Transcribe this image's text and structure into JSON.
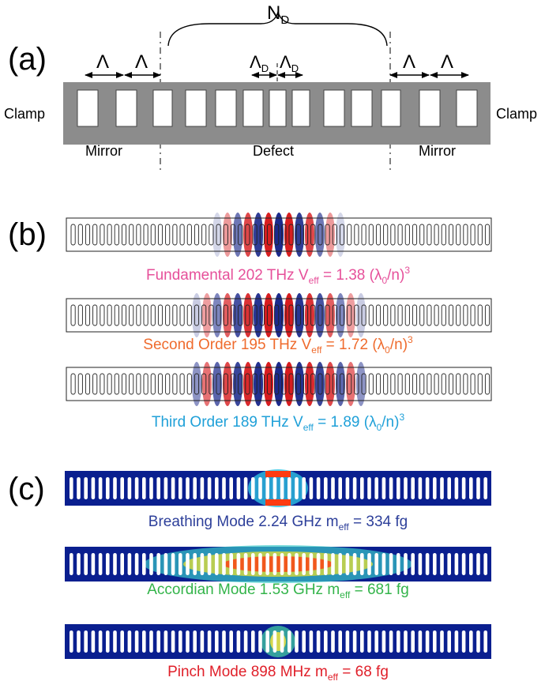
{
  "panel_a": {
    "label": "(a)",
    "nd_main": "N",
    "nd_sub": "D",
    "lambda": "Λ",
    "lambda_d_main": "Λ",
    "lambda_d_sub": "D",
    "clamp_left": "Clamp",
    "clamp_right": "Clamp",
    "mirror_left": "Mirror",
    "defect": "Defect",
    "mirror_right": "Mirror"
  },
  "panel_b": {
    "label": "(b)",
    "modes": [
      {
        "name": "Fundamental",
        "freq": "202 THz",
        "veff_pre": "V",
        "veff_sub": "eff",
        "veff_val": " = 1.38 (λ",
        "veff_sub2": "0",
        "veff_end": "/n)",
        "veff_sup": "3",
        "color": "#e6509a"
      },
      {
        "name": "Second Order",
        "freq": "195 THz",
        "veff_pre": "V",
        "veff_sub": "eff",
        "veff_val": " = 1.72 (λ",
        "veff_sub2": "0",
        "veff_end": "/n)",
        "veff_sup": "3",
        "color": "#ef6b2d"
      },
      {
        "name": "Third Order",
        "freq": "189 THz",
        "veff_pre": "V",
        "veff_sub": "eff",
        "veff_val": " = 1.89 (λ",
        "veff_sub2": "0",
        "veff_end": "/n)",
        "veff_sup": "3",
        "color": "#1fa0d8"
      }
    ]
  },
  "panel_c": {
    "label": "(c)",
    "modes": [
      {
        "name": "Breathing Mode",
        "freq": "2.24 GHz",
        "m_pre": "m",
        "m_sub": "eff",
        "m_val": " = 334 fg",
        "color": "#2d3f9a"
      },
      {
        "name": "Accordian Mode",
        "freq": "1.53 GHz",
        "m_pre": "m",
        "m_sub": "eff",
        "m_val": " = 681 fg",
        "color": "#33b44a"
      },
      {
        "name": "Pinch Mode",
        "freq": "898 MHz",
        "m_pre": "m",
        "m_sub": "eff",
        "m_val": " = 68 fg",
        "color": "#e0202a"
      }
    ]
  },
  "colors": {
    "beam_gray": "#8c8c8c",
    "field_red": "#d7191c",
    "field_blue": "#1c2a8c",
    "mech_bg": "#0a1f8f",
    "hot": "#ff3b10"
  }
}
